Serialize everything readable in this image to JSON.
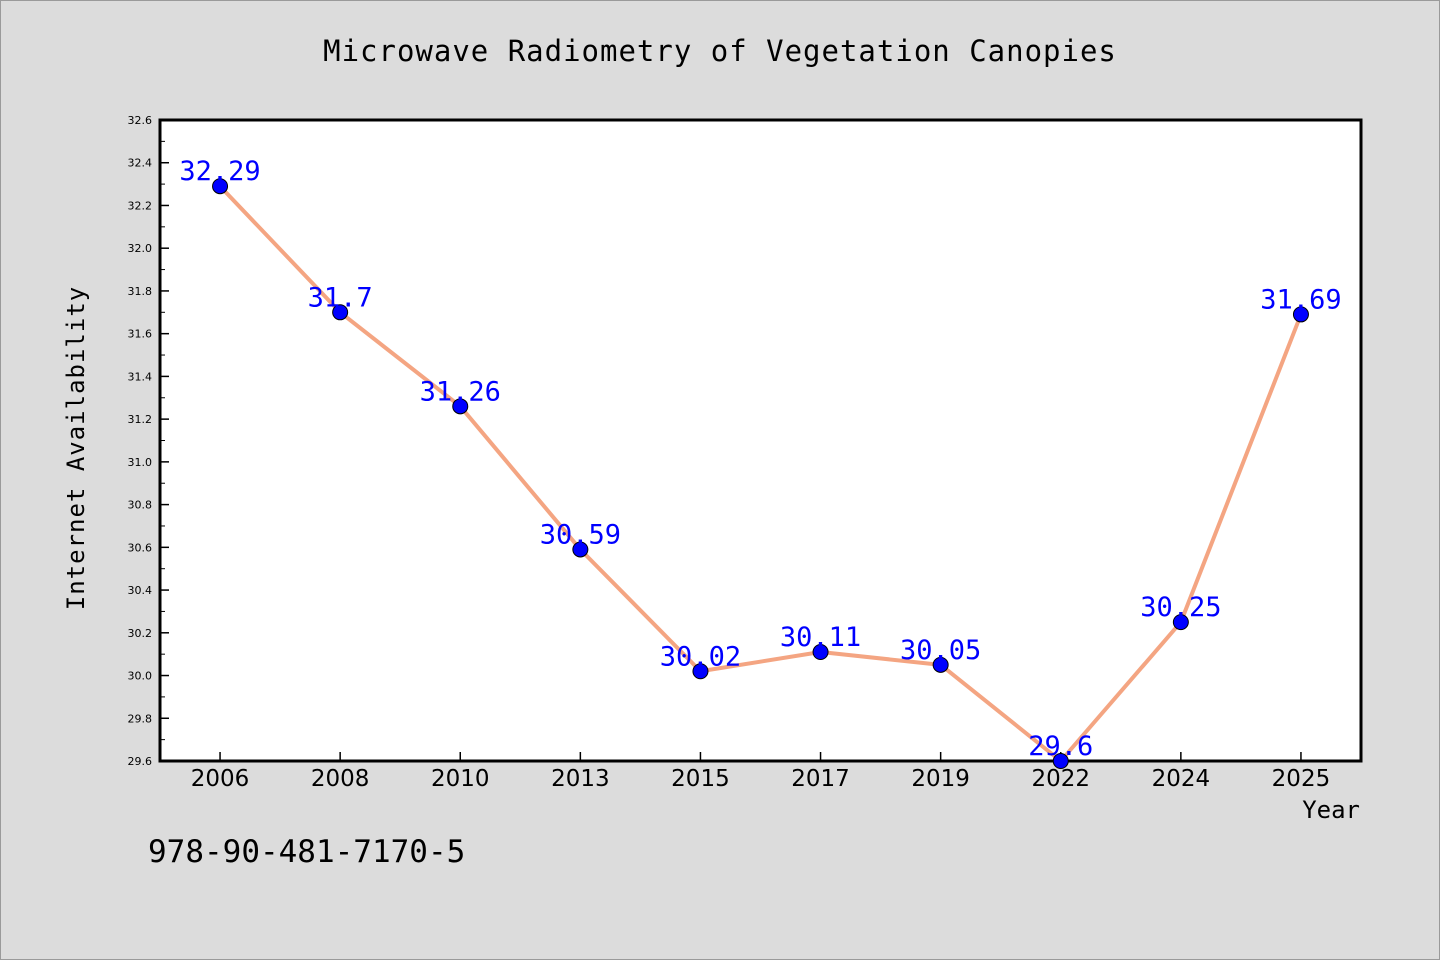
{
  "chart_data": {
    "type": "line",
    "title": "Microwave Radiometry of Vegetation Canopies",
    "xlabel": "Year",
    "ylabel": "Internet Availability",
    "categories": [
      "2006",
      "2008",
      "2010",
      "2013",
      "2015",
      "2017",
      "2019",
      "2022",
      "2024",
      "2025"
    ],
    "series": [
      {
        "values": [
          32.29,
          31.7,
          31.26,
          30.59,
          30.02,
          30.11,
          30.05,
          29.6,
          30.25,
          31.69
        ]
      }
    ],
    "data_labels": [
      "32.29",
      "31.7",
      "31.26",
      "30.59",
      "30.02",
      "30.11",
      "30.05",
      "29.6",
      "30.25",
      "31.69"
    ],
    "ylim": [
      29.6,
      32.6
    ],
    "y_ticks": [
      "29.6",
      "29.8",
      "30.0",
      "30.2",
      "30.4",
      "30.6",
      "30.8",
      "31.0",
      "31.2",
      "31.4",
      "31.6",
      "31.8",
      "32.0",
      "32.2",
      "32.4",
      "32.6"
    ],
    "grid": false,
    "legend": "none",
    "colors": {
      "line": "#f4a582",
      "marker": "#0000ff",
      "label": "#0000ff",
      "background": "#dcdcdc",
      "plot_background": "#ffffff"
    }
  },
  "footer": {
    "text": "978-90-481-7170-5"
  }
}
